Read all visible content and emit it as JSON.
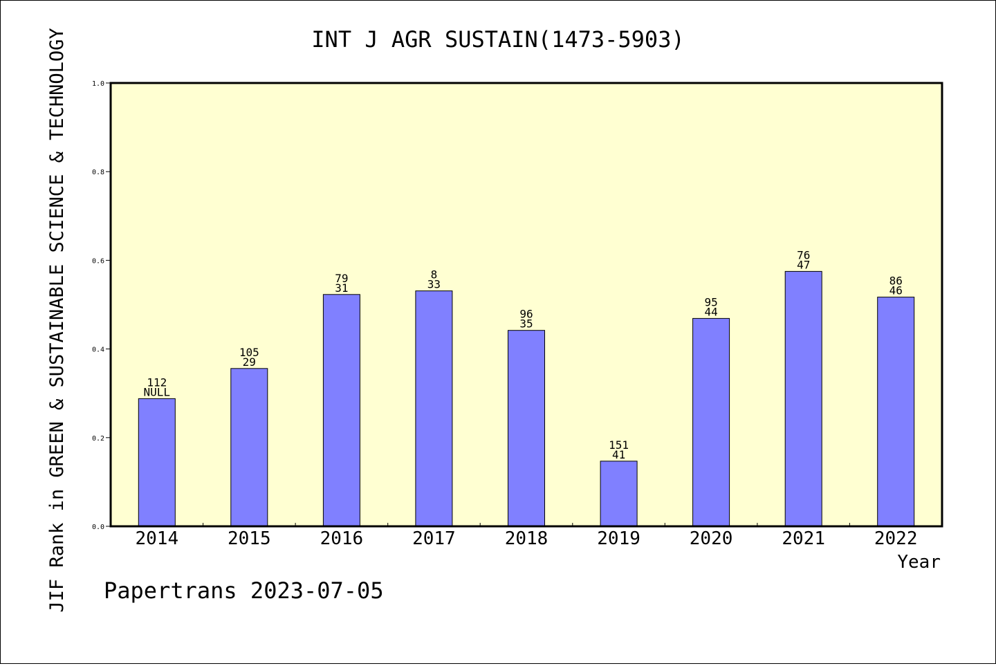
{
  "chart_data": {
    "type": "bar",
    "title": "INT J AGR SUSTAIN(1473-5903)",
    "xlabel": "Year",
    "ylabel": "JIF Rank in GREEN & SUSTAINABLE SCIENCE & TECHNOLOGY",
    "ylim": [
      0,
      1.0
    ],
    "yticks": [
      "0.0",
      "0.2",
      "0.4",
      "0.6",
      "0.8",
      "1.0"
    ],
    "categories": [
      "2014",
      "2015",
      "2016",
      "2017",
      "2018",
      "2019",
      "2020",
      "2021",
      "2022"
    ],
    "values": [
      0.288,
      0.356,
      0.523,
      0.531,
      0.442,
      0.147,
      0.469,
      0.575,
      0.517
    ],
    "labels_top": [
      "112",
      "105",
      "79",
      "8",
      "96",
      "151",
      "95",
      "76",
      "86"
    ],
    "labels_bottom": [
      "NULL",
      "29",
      "31",
      "33",
      "35",
      "41",
      "44",
      "47",
      "46"
    ],
    "colors": {
      "bar": "#8080ff",
      "plot_bg": "#ffffd2"
    },
    "grid": false
  },
  "footer": {
    "credit": "Papertrans 2023-07-05"
  }
}
